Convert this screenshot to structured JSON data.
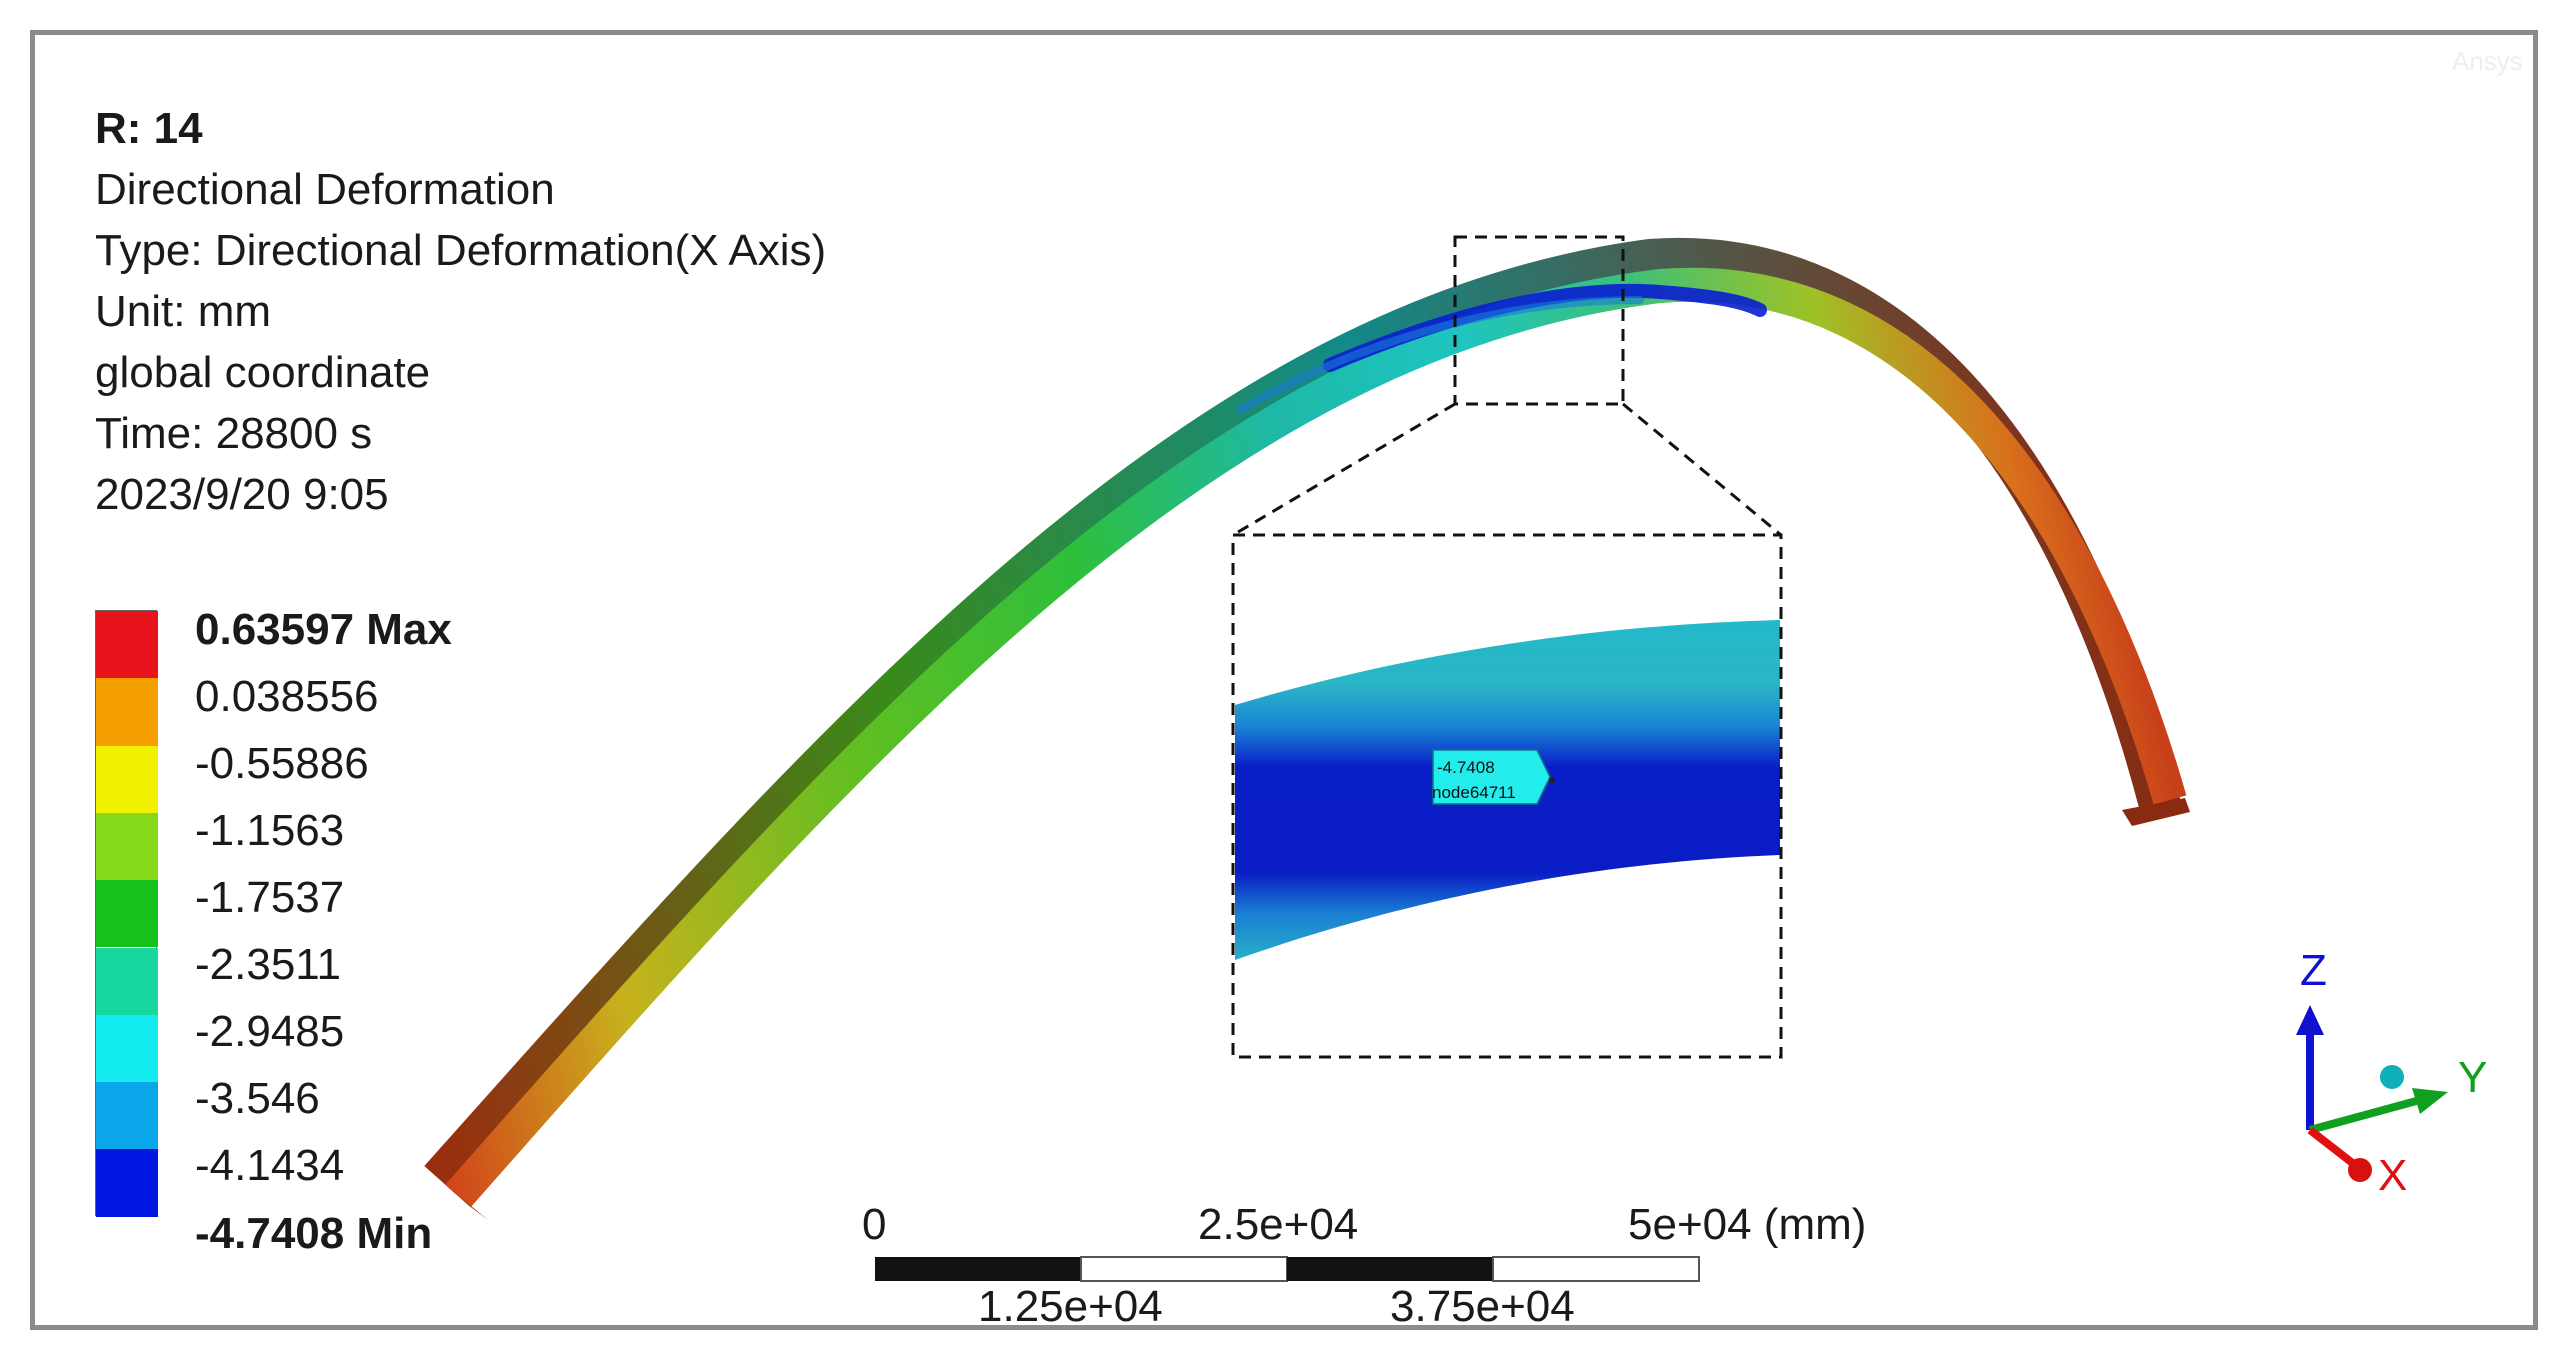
{
  "header": {
    "result_id": "R: 14",
    "result_name": "Directional Deformation",
    "type": "Type: Directional Deformation(X Axis)",
    "unit": "Unit: mm",
    "coordinate_system": "global coordinate",
    "time": "Time: 28800 s",
    "timestamp": "2023/9/20 9:05"
  },
  "watermark": "Ansys",
  "legend": {
    "max_label": "0.63597 Max",
    "min_label": "-4.7408 Min",
    "levels": [
      "0.038556",
      "-0.55886",
      "-1.1563",
      "-1.7537",
      "-2.3511",
      "-2.9485",
      "-3.546",
      "-4.1434"
    ],
    "colors": [
      "#e8141c",
      "#f5a000",
      "#f2f200",
      "#86d81a",
      "#16c21a",
      "#18d8a0",
      "#12ecf0",
      "#0aa6ea",
      "#0016e0"
    ]
  },
  "probe": {
    "value": "-4.7408",
    "node": "node64711"
  },
  "scale_bar": {
    "labels_top": [
      "0",
      "2.5e+04",
      "5e+04 (mm)"
    ],
    "labels_bottom": [
      "1.25e+04",
      "3.75e+04"
    ]
  },
  "axes": {
    "x_label": "X",
    "y_label": "Y",
    "z_label": "Z",
    "x_color": "#e01010",
    "y_color": "#10a020",
    "z_color": "#1010d0"
  }
}
